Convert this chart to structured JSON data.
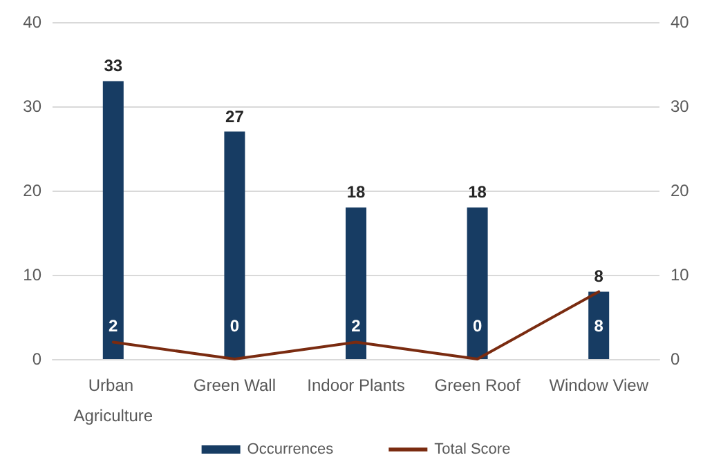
{
  "chart_data": {
    "type": "bar",
    "categories": [
      "Urban Agriculture",
      "Green Wall",
      "Indoor Plants",
      "Green Roof",
      "Window View"
    ],
    "series": [
      {
        "name": "Occurrences",
        "color": "#173c63",
        "values": [
          33,
          27,
          18,
          18,
          8
        ]
      },
      {
        "name": "Total Score",
        "type": "line",
        "axis": "y2",
        "color": "#7a2b10",
        "values": [
          2,
          0,
          2,
          0,
          8
        ],
        "marker": "none"
      }
    ],
    "ylim": [
      0,
      40
    ],
    "yticks": [
      0,
      10,
      20,
      30,
      40
    ],
    "y2lim": [
      0,
      40
    ],
    "y2ticks": [
      0,
      10,
      20,
      30,
      40
    ],
    "grid": "y",
    "legend": "bottom",
    "data_labels": true
  }
}
